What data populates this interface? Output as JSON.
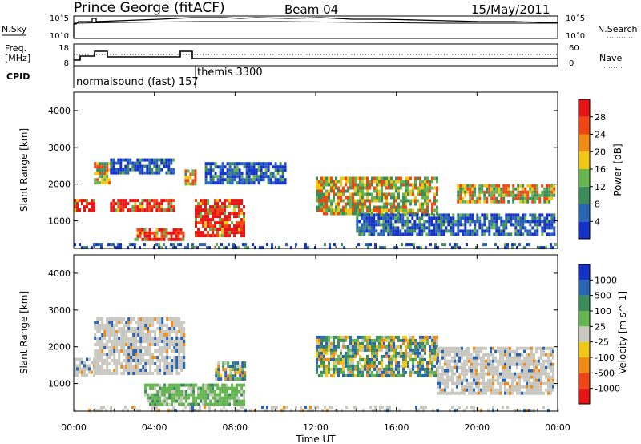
{
  "header": {
    "station": "Prince George (fitACF)",
    "beam": "Beam 04",
    "date": "15/May/2011"
  },
  "labels": {
    "nsky": "N.Sky",
    "freq_line1": "Freq.",
    "freq_line2": "[MHz]",
    "cpid": "CPID",
    "nsearch": "N.Search",
    "nave": "Nave",
    "cpid_mode1": "normalsound (fast) 157",
    "cpid_mode2": "themis 3300"
  },
  "noise_panel": {
    "left_ticks": [
      "10^5",
      "10^0"
    ],
    "right_ticks": [
      "10^5",
      "10^0"
    ]
  },
  "freq_panel": {
    "left_ticks": [
      "18",
      "8"
    ],
    "right_ticks": [
      "60",
      "0"
    ]
  },
  "colors": {
    "power": [
      "#1432c8",
      "#2a64b4",
      "#3c8c5a",
      "#64b450",
      "#f0c814",
      "#f08c14",
      "#f04614",
      "#e61414"
    ],
    "velocity": [
      "#1432c8",
      "#2a64b4",
      "#3c8c5a",
      "#64b450",
      "#c8c8c0",
      "#f0c814",
      "#f08c14",
      "#f04614",
      "#e61414"
    ]
  },
  "chart_data": [
    {
      "type": "heatmap",
      "title": "Power",
      "ylabel": "Slant Range [km]",
      "yticks": [
        "1000",
        "2000",
        "3000",
        "4000"
      ],
      "ylim": [
        250,
        4500
      ],
      "xlim": [
        "00:00",
        "24:00"
      ],
      "colorbar": {
        "label": "Power [dB]",
        "ticks": [
          "4",
          "8",
          "12",
          "16",
          "20",
          "24",
          "28"
        ],
        "range": [
          0,
          30
        ]
      },
      "regions": [
        {
          "t": [
            0.0,
            1.0
          ],
          "range": [
            1300,
            1600
          ],
          "level": "high"
        },
        {
          "t": [
            1.0,
            1.8
          ],
          "range": [
            2000,
            2600
          ],
          "level": "mid"
        },
        {
          "t": [
            1.8,
            5.0
          ],
          "range": [
            1300,
            1600
          ],
          "level": "high"
        },
        {
          "t": [
            1.8,
            5.0
          ],
          "range": [
            2300,
            2700
          ],
          "level": "low"
        },
        {
          "t": [
            3.0,
            5.5
          ],
          "range": [
            500,
            800
          ],
          "level": "high"
        },
        {
          "t": [
            5.5,
            6.0
          ],
          "range": [
            2000,
            2400
          ],
          "level": "mid"
        },
        {
          "t": [
            6.0,
            8.5
          ],
          "range": [
            600,
            1600
          ],
          "level": "high"
        },
        {
          "t": [
            6.5,
            10.5
          ],
          "range": [
            2000,
            2600
          ],
          "level": "low"
        },
        {
          "t": [
            12.0,
            18.0
          ],
          "range": [
            1200,
            2200
          ],
          "level": "mid"
        },
        {
          "t": [
            14.0,
            23.8
          ],
          "range": [
            600,
            1200
          ],
          "level": "low"
        },
        {
          "t": [
            19.0,
            23.8
          ],
          "range": [
            1500,
            2000
          ],
          "level": "mid"
        },
        {
          "t": [
            0.0,
            24.0
          ],
          "range": [
            250,
            400
          ],
          "level": "low"
        }
      ]
    },
    {
      "type": "heatmap",
      "title": "Velocity",
      "ylabel": "Slant Range [km]",
      "yticks": [
        "1000",
        "2000",
        "3000",
        "4000"
      ],
      "ylim": [
        250,
        4500
      ],
      "xlabel": "Time UT",
      "xticks": [
        "00:00",
        "04:00",
        "08:00",
        "12:00",
        "16:00",
        "20:00",
        "00:00"
      ],
      "xlim": [
        "00:00",
        "24:00"
      ],
      "colorbar": {
        "label": "Velocity [m s^-1]",
        "ticks": [
          "1000",
          "500",
          "100",
          "25",
          "-25",
          "-100",
          "-500",
          "-1000"
        ],
        "range": [
          -1000,
          1000
        ]
      },
      "regions": [
        {
          "t": [
            0.0,
            1.0
          ],
          "range": [
            1200,
            1700
          ],
          "level": "grey"
        },
        {
          "t": [
            1.0,
            5.5
          ],
          "range": [
            1300,
            2800
          ],
          "level": "grey"
        },
        {
          "t": [
            3.5,
            8.5
          ],
          "range": [
            400,
            1000
          ],
          "level": "green"
        },
        {
          "t": [
            7.0,
            8.5
          ],
          "range": [
            1100,
            1600
          ],
          "level": "mixed"
        },
        {
          "t": [
            12.0,
            18.0
          ],
          "range": [
            1200,
            2300
          ],
          "level": "mixed"
        },
        {
          "t": [
            18.0,
            23.8
          ],
          "range": [
            700,
            2000
          ],
          "level": "grey"
        },
        {
          "t": [
            0.0,
            24.0
          ],
          "range": [
            250,
            400
          ],
          "level": "grey"
        }
      ]
    }
  ]
}
